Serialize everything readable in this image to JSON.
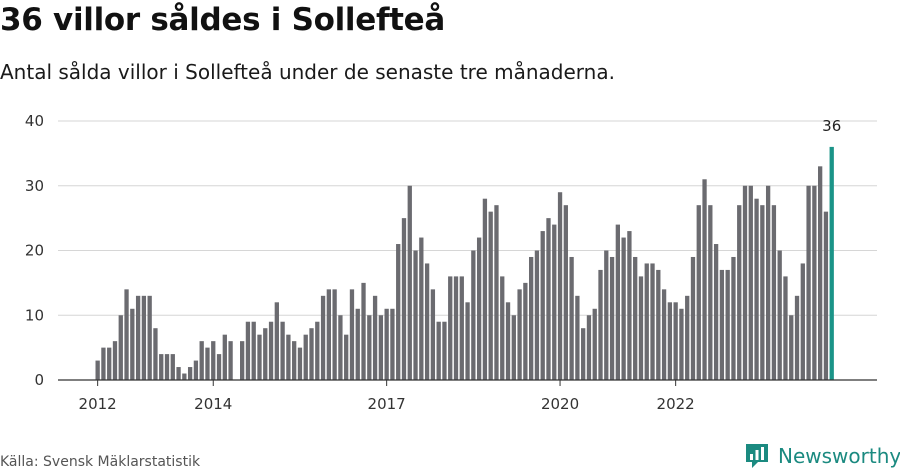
{
  "header": {
    "title": "36 villor såldes i Sollefteå",
    "subtitle": "Antal sålda villor i Sollefteå under de senaste tre månaderna."
  },
  "footer": {
    "source": "Källa: Svensk Mäklarstatistik",
    "brand": "Newsworthy",
    "brand_icon": "newsworthy-chart-logo-icon"
  },
  "colors": {
    "bar": "#6b6b70",
    "highlight": "#1b9488",
    "grid": "#d6d6d6",
    "axis": "#333333",
    "brand": "#1b8a80"
  },
  "chart_data": {
    "type": "bar",
    "ylim": [
      0,
      40
    ],
    "yticks": [
      0,
      10,
      20,
      30,
      40
    ],
    "xticks": [
      {
        "label": "2012",
        "index": 0
      },
      {
        "label": "2014",
        "index": 20
      },
      {
        "label": "2017",
        "index": 50
      },
      {
        "label": "2020",
        "index": 80
      },
      {
        "label": "2022",
        "index": 100
      }
    ],
    "values": [
      3,
      5,
      5,
      6,
      10,
      14,
      11,
      13,
      13,
      13,
      8,
      4,
      4,
      4,
      2,
      1,
      2,
      3,
      6,
      5,
      6,
      4,
      7,
      6,
      0,
      6,
      9,
      9,
      7,
      8,
      9,
      12,
      9,
      7,
      6,
      5,
      7,
      8,
      9,
      13,
      14,
      14,
      10,
      7,
      14,
      11,
      15,
      10,
      13,
      10,
      11,
      11,
      21,
      25,
      30,
      20,
      22,
      18,
      14,
      9,
      9,
      16,
      16,
      16,
      12,
      20,
      22,
      28,
      26,
      27,
      16,
      12,
      10,
      14,
      15,
      19,
      20,
      23,
      25,
      24,
      29,
      27,
      19,
      13,
      8,
      10,
      11,
      17,
      20,
      19,
      24,
      22,
      23,
      19,
      16,
      18,
      18,
      17,
      14,
      12,
      12,
      11,
      13,
      19,
      27,
      31,
      27,
      21,
      17,
      17,
      19,
      27,
      30,
      30,
      28,
      27,
      30,
      27,
      20,
      16,
      10,
      13,
      18,
      30,
      30,
      33,
      26,
      36
    ],
    "highlight": {
      "index": 127,
      "value": 36,
      "label": "36"
    }
  }
}
